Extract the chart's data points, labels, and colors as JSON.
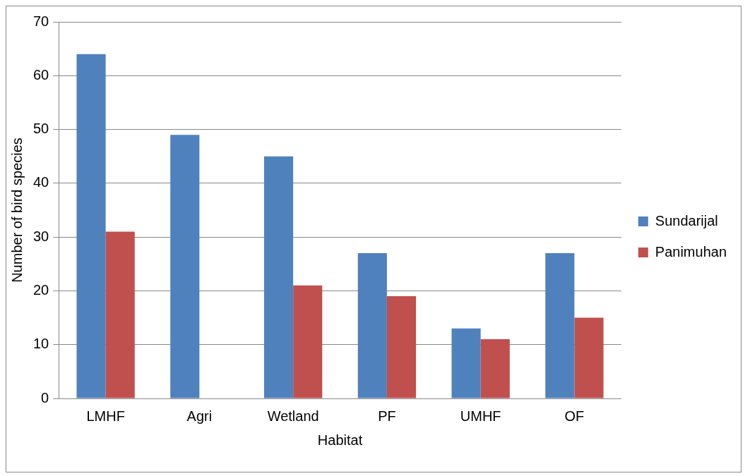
{
  "chart_data": {
    "type": "bar",
    "xlabel": "Habitat",
    "ylabel": "Number of bird species",
    "categories": [
      "LMHF",
      "Agri",
      "Wetland",
      "PF",
      "UMHF",
      "OF"
    ],
    "series": [
      {
        "name": "Sundarijal",
        "color": "#4f81bd",
        "values": [
          64,
          49,
          45,
          27,
          13,
          27
        ]
      },
      {
        "name": "Panimuhan",
        "color": "#c0504d",
        "values": [
          31,
          0,
          21,
          19,
          11,
          15
        ]
      }
    ],
    "ylim": [
      0,
      70
    ],
    "yticks": [
      0,
      10,
      20,
      30,
      40,
      50,
      60,
      70
    ],
    "grid": "y",
    "legend": "right"
  }
}
